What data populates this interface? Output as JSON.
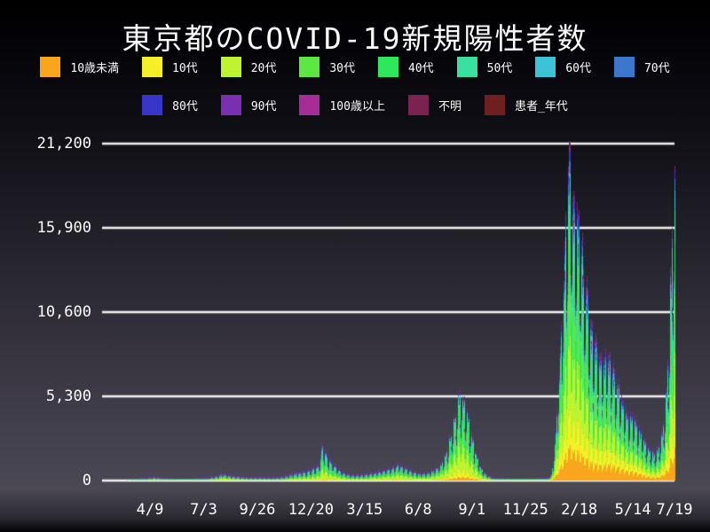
{
  "chart_data": {
    "type": "area",
    "stacked": true,
    "title": "東京都のCOVID-19新規陽性者数",
    "legend_position": "top",
    "grid": true,
    "y_axis": {
      "ticks": [
        0,
        5300,
        10600,
        15900,
        21200
      ],
      "tick_labels": [
        "0",
        "5,300",
        "10,600",
        "15,900",
        "21,200"
      ],
      "max": 21200,
      "grid_color": "#f0f0f0"
    },
    "x_axis": {
      "tick_labels": [
        "4/9",
        "7/3",
        "9/26",
        "12/20",
        "3/15",
        "6/8",
        "9/1",
        "11/25",
        "2/18",
        "5/14",
        "7/19"
      ],
      "tick_days": [
        76,
        161,
        246,
        331,
        416,
        501,
        586,
        671,
        756,
        841,
        907
      ],
      "domain_days": [
        0,
        907
      ]
    },
    "series": [
      {
        "label": "10歳未満",
        "color": "#f9a51e"
      },
      {
        "label": "10代",
        "color": "#f6ef26"
      },
      {
        "label": "20代",
        "color": "#bdf32f"
      },
      {
        "label": "30代",
        "color": "#5ce843"
      },
      {
        "label": "40代",
        "color": "#2ee75b"
      },
      {
        "label": "50代",
        "color": "#38e19d"
      },
      {
        "label": "60代",
        "color": "#3cc3d6"
      },
      {
        "label": "70代",
        "color": "#3b78cc"
      },
      {
        "label": "80代",
        "color": "#3a35c9"
      },
      {
        "label": "90代",
        "color": "#7a2fb3"
      },
      {
        "label": "100歳以上",
        "color": "#a62c97"
      },
      {
        "label": "不明",
        "color": "#7c2250"
      },
      {
        "label": "患者_年代",
        "color": "#6e2020"
      }
    ],
    "top_fringe_color": "#7a2fb3",
    "total_envelope": [
      [
        0,
        0
      ],
      [
        15,
        2
      ],
      [
        30,
        4
      ],
      [
        45,
        10
      ],
      [
        55,
        16
      ],
      [
        62,
        45
      ],
      [
        68,
        90
      ],
      [
        76,
        170
      ],
      [
        84,
        201
      ],
      [
        90,
        160
      ],
      [
        97,
        110
      ],
      [
        105,
        50
      ],
      [
        115,
        22
      ],
      [
        125,
        14
      ],
      [
        135,
        18
      ],
      [
        145,
        28
      ],
      [
        155,
        45
      ],
      [
        163,
        75
      ],
      [
        170,
        165
      ],
      [
        178,
        240
      ],
      [
        185,
        280
      ],
      [
        190,
        445
      ],
      [
        197,
        350
      ],
      [
        205,
        290
      ],
      [
        212,
        250
      ],
      [
        220,
        210
      ],
      [
        228,
        180
      ],
      [
        240,
        175
      ],
      [
        252,
        180
      ],
      [
        262,
        165
      ],
      [
        272,
        160
      ],
      [
        282,
        195
      ],
      [
        292,
        280
      ],
      [
        300,
        400
      ],
      [
        308,
        480
      ],
      [
        316,
        520
      ],
      [
        324,
        580
      ],
      [
        331,
        700
      ],
      [
        338,
        830
      ],
      [
        343,
        1000
      ],
      [
        347,
        1650
      ],
      [
        349,
        2520
      ],
      [
        352,
        2100
      ],
      [
        356,
        1750
      ],
      [
        361,
        1400
      ],
      [
        366,
        1080
      ],
      [
        372,
        830
      ],
      [
        378,
        640
      ],
      [
        385,
        480
      ],
      [
        392,
        380
      ],
      [
        400,
        330
      ],
      [
        408,
        340
      ],
      [
        416,
        390
      ],
      [
        424,
        440
      ],
      [
        432,
        510
      ],
      [
        440,
        590
      ],
      [
        448,
        680
      ],
      [
        456,
        790
      ],
      [
        463,
        880
      ],
      [
        470,
        1050
      ],
      [
        476,
        900
      ],
      [
        482,
        780
      ],
      [
        488,
        650
      ],
      [
        495,
        540
      ],
      [
        502,
        470
      ],
      [
        509,
        440
      ],
      [
        516,
        490
      ],
      [
        523,
        600
      ],
      [
        530,
        780
      ],
      [
        537,
        1050
      ],
      [
        543,
        1500
      ],
      [
        549,
        2300
      ],
      [
        555,
        3400
      ],
      [
        560,
        4200
      ],
      [
        564,
        5000
      ],
      [
        567,
        5780
      ],
      [
        571,
        5400
      ],
      [
        575,
        5150
      ],
      [
        580,
        4300
      ],
      [
        585,
        3100
      ],
      [
        590,
        2100
      ],
      [
        595,
        1400
      ],
      [
        600,
        860
      ],
      [
        605,
        540
      ],
      [
        610,
        340
      ],
      [
        616,
        210
      ],
      [
        622,
        120
      ],
      [
        630,
        66
      ],
      [
        638,
        36
      ],
      [
        646,
        26
      ],
      [
        655,
        20
      ],
      [
        665,
        18
      ],
      [
        675,
        19
      ],
      [
        685,
        24
      ],
      [
        692,
        35
      ],
      [
        698,
        55
      ],
      [
        703,
        85
      ],
      [
        708,
        140
      ],
      [
        712,
        390
      ],
      [
        716,
        1300
      ],
      [
        720,
        3700
      ],
      [
        724,
        6500
      ],
      [
        728,
        10000
      ],
      [
        732,
        13500
      ],
      [
        736,
        17000
      ],
      [
        740,
        21200
      ],
      [
        743,
        20000
      ],
      [
        746,
        18800
      ],
      [
        749,
        18000
      ],
      [
        753,
        17600
      ],
      [
        757,
        16500
      ],
      [
        761,
        14800
      ],
      [
        765,
        13200
      ],
      [
        770,
        11600
      ],
      [
        775,
        10300
      ],
      [
        780,
        9400
      ],
      [
        785,
        8700
      ],
      [
        790,
        8100
      ],
      [
        795,
        7900
      ],
      [
        800,
        8300
      ],
      [
        805,
        8000
      ],
      [
        810,
        7200
      ],
      [
        815,
        6600
      ],
      [
        820,
        6000
      ],
      [
        825,
        5300
      ],
      [
        830,
        4700
      ],
      [
        835,
        4300
      ],
      [
        840,
        4350
      ],
      [
        845,
        3950
      ],
      [
        850,
        3450
      ],
      [
        855,
        3100
      ],
      [
        860,
        2650
      ],
      [
        865,
        2300
      ],
      [
        870,
        1950
      ],
      [
        875,
        1800
      ],
      [
        880,
        2050
      ],
      [
        884,
        2500
      ],
      [
        888,
        3300
      ],
      [
        891,
        4300
      ],
      [
        894,
        5800
      ],
      [
        897,
        8200
      ],
      [
        900,
        11800
      ],
      [
        902,
        14200
      ],
      [
        904,
        17600
      ],
      [
        906,
        19300
      ],
      [
        907,
        19800
      ]
    ],
    "weekly_pattern": [
      1.0,
      0.62,
      0.52,
      0.68,
      0.95,
      1.0,
      0.9
    ],
    "jitter": 0.1,
    "share_breakpoints": [
      {
        "day": 0,
        "shares": [
          0.02,
          0.03,
          0.26,
          0.22,
          0.17,
          0.12,
          0.07,
          0.05,
          0.035,
          0.02,
          0.002,
          0.023,
          0
        ]
      },
      {
        "day": 200,
        "shares": [
          0.03,
          0.05,
          0.33,
          0.2,
          0.14,
          0.1,
          0.06,
          0.04,
          0.025,
          0.012,
          0.001,
          0.012,
          0
        ]
      },
      {
        "day": 350,
        "shares": [
          0.025,
          0.05,
          0.24,
          0.19,
          0.16,
          0.13,
          0.08,
          0.06,
          0.04,
          0.018,
          0.002,
          0.015,
          0
        ]
      },
      {
        "day": 567,
        "shares": [
          0.045,
          0.09,
          0.3,
          0.21,
          0.17,
          0.11,
          0.035,
          0.015,
          0.008,
          0.004,
          0.0005,
          0.0125,
          0
        ]
      },
      {
        "day": 745,
        "shares": [
          0.105,
          0.105,
          0.22,
          0.185,
          0.15,
          0.095,
          0.05,
          0.035,
          0.028,
          0.013,
          0.002,
          0.012,
          0
        ]
      },
      {
        "day": 830,
        "shares": [
          0.14,
          0.13,
          0.17,
          0.17,
          0.15,
          0.1,
          0.05,
          0.038,
          0.025,
          0.013,
          0.002,
          0.012,
          0
        ]
      },
      {
        "day": 907,
        "shares": [
          0.105,
          0.115,
          0.19,
          0.18,
          0.16,
          0.115,
          0.06,
          0.038,
          0.02,
          0.009,
          0.001,
          0.007,
          0
        ]
      }
    ]
  }
}
